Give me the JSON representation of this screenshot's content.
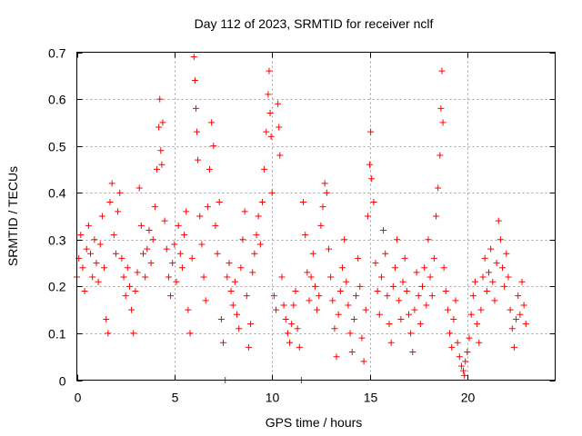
{
  "chart_data": {
    "type": "scatter",
    "title": "Day 112 of 2023, SRMTID for receiver nclf",
    "xlabel": "GPS time / hours",
    "ylabel": "SRMTID / TECUs",
    "xlim": [
      0,
      24.5
    ],
    "ylim": [
      0,
      0.7
    ],
    "xticks": [
      0,
      5,
      10,
      15,
      20
    ],
    "yticks": [
      0,
      0.1,
      0.2,
      0.3,
      0.4,
      0.5,
      0.6,
      0.7
    ],
    "xtick_labels": [
      "0",
      "5",
      "10",
      "15",
      "20"
    ],
    "ytick_labels": [
      "0",
      "0.1",
      "0.2",
      "0.3",
      "0.4",
      "0.5",
      "0.6",
      "0.7"
    ],
    "grid": true,
    "marker": "+",
    "color": "#ff0000",
    "series": [
      {
        "name": "SRMTID",
        "points": [
          [
            0.0,
            0.22
          ],
          [
            0.1,
            0.26
          ],
          [
            0.2,
            0.31
          ],
          [
            0.3,
            0.24
          ],
          [
            0.4,
            0.19
          ],
          [
            0.5,
            0.28
          ],
          [
            0.6,
            0.33
          ],
          [
            0.7,
            0.27
          ],
          [
            0.8,
            0.22
          ],
          [
            0.9,
            0.3
          ],
          [
            1.0,
            0.25
          ],
          [
            1.1,
            0.21
          ],
          [
            1.2,
            0.29
          ],
          [
            1.3,
            0.35
          ],
          [
            1.4,
            0.24
          ],
          [
            1.5,
            0.13
          ],
          [
            1.6,
            0.1
          ],
          [
            1.7,
            0.38
          ],
          [
            1.8,
            0.42
          ],
          [
            1.9,
            0.31
          ],
          [
            2.0,
            0.27
          ],
          [
            2.1,
            0.36
          ],
          [
            2.2,
            0.4
          ],
          [
            2.3,
            0.26
          ],
          [
            2.4,
            0.22
          ],
          [
            2.5,
            0.18
          ],
          [
            2.6,
            0.24
          ],
          [
            2.7,
            0.2
          ],
          [
            2.8,
            0.15
          ],
          [
            2.9,
            0.1
          ],
          [
            3.0,
            0.19
          ],
          [
            3.1,
            0.23
          ],
          [
            3.2,
            0.41
          ],
          [
            3.3,
            0.33
          ],
          [
            3.4,
            0.27
          ],
          [
            3.5,
            0.22
          ],
          [
            3.6,
            0.28
          ],
          [
            3.7,
            0.32
          ],
          [
            3.8,
            0.25
          ],
          [
            3.9,
            0.3
          ],
          [
            4.0,
            0.37
          ],
          [
            4.1,
            0.45
          ],
          [
            4.2,
            0.54
          ],
          [
            4.25,
            0.6
          ],
          [
            4.3,
            0.49
          ],
          [
            4.35,
            0.46
          ],
          [
            4.4,
            0.55
          ],
          [
            4.5,
            0.34
          ],
          [
            4.6,
            0.28
          ],
          [
            4.7,
            0.22
          ],
          [
            4.8,
            0.18
          ],
          [
            4.9,
            0.25
          ],
          [
            5.0,
            0.29
          ],
          [
            5.1,
            0.21
          ],
          [
            5.2,
            0.33
          ],
          [
            5.3,
            0.27
          ],
          [
            5.4,
            0.24
          ],
          [
            5.5,
            0.31
          ],
          [
            5.6,
            0.36
          ],
          [
            5.7,
            0.15
          ],
          [
            5.8,
            0.1
          ],
          [
            5.9,
            0.26
          ],
          [
            6.0,
            0.69
          ],
          [
            6.05,
            0.64
          ],
          [
            6.1,
            0.58
          ],
          [
            6.15,
            0.53
          ],
          [
            6.2,
            0.47
          ],
          [
            6.3,
            0.35
          ],
          [
            6.4,
            0.29
          ],
          [
            6.5,
            0.22
          ],
          [
            6.6,
            0.17
          ],
          [
            6.7,
            0.37
          ],
          [
            6.8,
            0.45
          ],
          [
            6.9,
            0.55
          ],
          [
            7.0,
            0.5
          ],
          [
            7.1,
            0.33
          ],
          [
            7.2,
            0.27
          ],
          [
            7.3,
            0.38
          ],
          [
            7.4,
            0.13
          ],
          [
            7.5,
            0.08
          ],
          [
            7.6,
            0.0
          ],
          [
            7.7,
            0.22
          ],
          [
            7.8,
            0.25
          ],
          [
            7.9,
            0.19
          ],
          [
            8.0,
            0.16
          ],
          [
            8.1,
            0.21
          ],
          [
            8.2,
            0.14
          ],
          [
            8.3,
            0.11
          ],
          [
            8.4,
            0.24
          ],
          [
            8.5,
            0.3
          ],
          [
            8.6,
            0.36
          ],
          [
            8.7,
            0.18
          ],
          [
            8.8,
            0.07
          ],
          [
            8.9,
            0.12
          ],
          [
            9.0,
            0.23
          ],
          [
            9.1,
            0.27
          ],
          [
            9.2,
            0.31
          ],
          [
            9.3,
            0.35
          ],
          [
            9.4,
            0.29
          ],
          [
            9.5,
            0.38
          ],
          [
            9.6,
            0.45
          ],
          [
            9.7,
            0.53
          ],
          [
            9.8,
            0.61
          ],
          [
            9.85,
            0.66
          ],
          [
            9.9,
            0.57
          ],
          [
            9.95,
            0.52
          ],
          [
            10.0,
            0.4
          ],
          [
            10.1,
            0.18
          ],
          [
            10.2,
            0.15
          ],
          [
            10.3,
            0.59
          ],
          [
            10.35,
            0.54
          ],
          [
            10.4,
            0.48
          ],
          [
            10.5,
            0.22
          ],
          [
            10.6,
            0.16
          ],
          [
            10.7,
            0.13
          ],
          [
            10.8,
            0.1
          ],
          [
            10.9,
            0.08
          ],
          [
            11.0,
            0.12
          ],
          [
            11.1,
            0.16
          ],
          [
            11.2,
            0.19
          ],
          [
            11.3,
            0.11
          ],
          [
            11.4,
            0.07
          ],
          [
            11.5,
            0.0
          ],
          [
            11.6,
            0.38
          ],
          [
            11.7,
            0.31
          ],
          [
            11.8,
            0.23
          ],
          [
            11.9,
            0.17
          ],
          [
            12.0,
            0.22
          ],
          [
            12.1,
            0.27
          ],
          [
            12.2,
            0.2
          ],
          [
            12.3,
            0.15
          ],
          [
            12.4,
            0.18
          ],
          [
            12.5,
            0.33
          ],
          [
            12.6,
            0.37
          ],
          [
            12.7,
            0.42
          ],
          [
            12.8,
            0.4
          ],
          [
            12.9,
            0.28
          ],
          [
            13.0,
            0.22
          ],
          [
            13.1,
            0.17
          ],
          [
            13.2,
            0.11
          ],
          [
            13.3,
            0.05
          ],
          [
            13.4,
            0.14
          ],
          [
            13.5,
            0.19
          ],
          [
            13.6,
            0.24
          ],
          [
            13.7,
            0.3
          ],
          [
            13.8,
            0.21
          ],
          [
            13.9,
            0.16
          ],
          [
            14.0,
            0.1
          ],
          [
            14.1,
            0.06
          ],
          [
            14.2,
            0.13
          ],
          [
            14.3,
            0.18
          ],
          [
            14.4,
            0.26
          ],
          [
            14.5,
            0.2
          ],
          [
            14.6,
            0.09
          ],
          [
            14.7,
            0.04
          ],
          [
            14.8,
            0.15
          ],
          [
            14.9,
            0.35
          ],
          [
            15.0,
            0.46
          ],
          [
            15.05,
            0.53
          ],
          [
            15.1,
            0.43
          ],
          [
            15.2,
            0.38
          ],
          [
            15.3,
            0.25
          ],
          [
            15.4,
            0.19
          ],
          [
            15.5,
            0.14
          ],
          [
            15.6,
            0.22
          ],
          [
            15.7,
            0.32
          ],
          [
            15.8,
            0.27
          ],
          [
            15.9,
            0.18
          ],
          [
            16.0,
            0.12
          ],
          [
            16.1,
            0.08
          ],
          [
            16.2,
            0.2
          ],
          [
            16.3,
            0.24
          ],
          [
            16.4,
            0.3
          ],
          [
            16.5,
            0.17
          ],
          [
            16.6,
            0.13
          ],
          [
            16.7,
            0.21
          ],
          [
            16.8,
            0.26
          ],
          [
            16.9,
            0.19
          ],
          [
            17.0,
            0.14
          ],
          [
            17.1,
            0.1
          ],
          [
            17.2,
            0.06
          ],
          [
            17.3,
            0.15
          ],
          [
            17.4,
            0.23
          ],
          [
            17.5,
            0.18
          ],
          [
            17.6,
            0.12
          ],
          [
            17.7,
            0.2
          ],
          [
            17.8,
            0.24
          ],
          [
            17.9,
            0.16
          ],
          [
            18.0,
            0.3
          ],
          [
            18.1,
            0.22
          ],
          [
            18.2,
            0.18
          ],
          [
            18.3,
            0.26
          ],
          [
            18.4,
            0.35
          ],
          [
            18.5,
            0.41
          ],
          [
            18.6,
            0.48
          ],
          [
            18.65,
            0.58
          ],
          [
            18.7,
            0.66
          ],
          [
            18.75,
            0.55
          ],
          [
            18.8,
            0.24
          ],
          [
            18.9,
            0.19
          ],
          [
            19.0,
            0.15
          ],
          [
            19.1,
            0.1
          ],
          [
            19.2,
            0.07
          ],
          [
            19.3,
            0.13
          ],
          [
            19.4,
            0.17
          ],
          [
            19.5,
            0.08
          ],
          [
            19.6,
            0.05
          ],
          [
            19.7,
            0.03
          ],
          [
            19.8,
            0.02
          ],
          [
            19.85,
            0.01
          ],
          [
            19.9,
            0.04
          ],
          [
            20.0,
            0.06
          ],
          [
            20.1,
            0.09
          ],
          [
            20.2,
            0.14
          ],
          [
            20.3,
            0.18
          ],
          [
            20.4,
            0.21
          ],
          [
            20.5,
            0.12
          ],
          [
            20.6,
            0.08
          ],
          [
            20.7,
            0.15
          ],
          [
            20.8,
            0.22
          ],
          [
            20.9,
            0.26
          ],
          [
            21.0,
            0.19
          ],
          [
            21.1,
            0.23
          ],
          [
            21.2,
            0.28
          ],
          [
            21.3,
            0.21
          ],
          [
            21.4,
            0.17
          ],
          [
            21.5,
            0.25
          ],
          [
            21.6,
            0.34
          ],
          [
            21.7,
            0.3
          ],
          [
            21.8,
            0.24
          ],
          [
            21.9,
            0.2
          ],
          [
            22.0,
            0.27
          ],
          [
            22.1,
            0.22
          ],
          [
            22.2,
            0.15
          ],
          [
            22.3,
            0.11
          ],
          [
            22.4,
            0.07
          ],
          [
            22.5,
            0.13
          ],
          [
            22.6,
            0.18
          ],
          [
            22.7,
            0.14
          ],
          [
            22.8,
            0.21
          ],
          [
            22.9,
            0.16
          ],
          [
            23.0,
            0.12
          ]
        ]
      }
    ]
  }
}
